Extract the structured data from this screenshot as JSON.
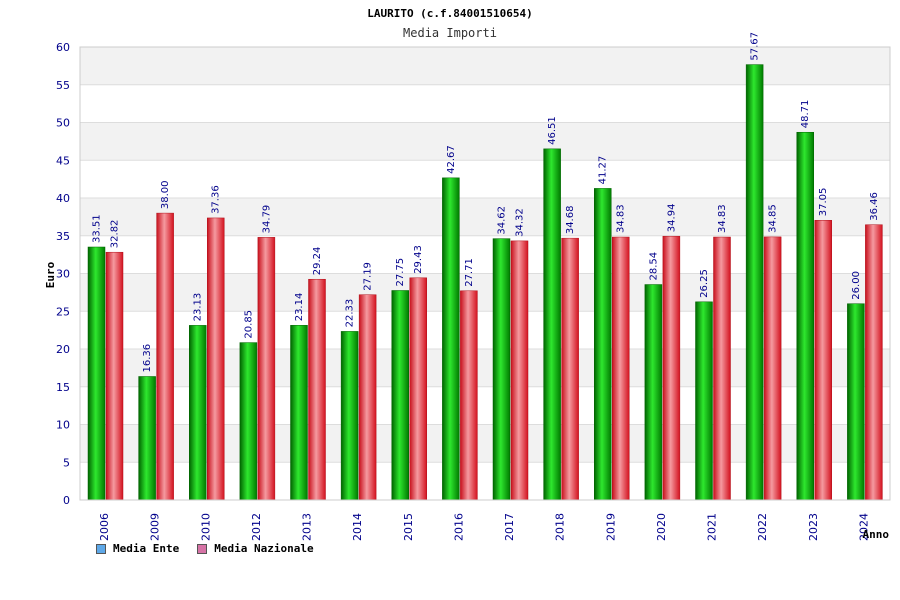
{
  "chart_data": {
    "type": "bar",
    "title": "LAURITO (c.f.84001510654)",
    "subtitle": "Media Importi",
    "xlabel": "Anno",
    "ylabel": "Euro",
    "ylim": [
      0,
      60
    ],
    "ytick_step": 5,
    "grid": true,
    "categories": [
      "2006",
      "2009",
      "2010",
      "2012",
      "2013",
      "2014",
      "2015",
      "2016",
      "2017",
      "2018",
      "2019",
      "2020",
      "2021",
      "2022",
      "2023",
      "2024"
    ],
    "series": [
      {
        "name": "Media Ente",
        "color": "#00b400",
        "legend_color": "#5ea8e8",
        "values": [
          33.51,
          16.36,
          23.13,
          20.85,
          23.14,
          22.33,
          27.75,
          42.67,
          34.62,
          46.51,
          41.27,
          28.54,
          26.25,
          57.67,
          48.71,
          26.0
        ],
        "labels": [
          "33.51",
          "16.36",
          "23.13",
          "20.85",
          "23.14",
          "22.33",
          "27.75",
          "42.67",
          "34.62",
          "46.51",
          "41.27",
          "28.54",
          "26.25",
          "57.67",
          "48.71",
          "26.00"
        ]
      },
      {
        "name": "Media Nazionale",
        "color": "#e61e2a",
        "legend_color": "#d673a6",
        "values": [
          32.82,
          38.0,
          37.36,
          34.79,
          29.24,
          27.19,
          29.43,
          27.71,
          34.32,
          34.68,
          34.83,
          34.94,
          34.83,
          34.85,
          37.05,
          36.46
        ],
        "labels": [
          "32.82",
          "38.00",
          "37.36",
          "34.79",
          "29.24",
          "27.19",
          "29.43",
          "27.71",
          "34.32",
          "34.68",
          "34.83",
          "34.94",
          "34.83",
          "34.85",
          "37.05",
          "36.46"
        ]
      }
    ],
    "legend_position": "bottom-left"
  }
}
